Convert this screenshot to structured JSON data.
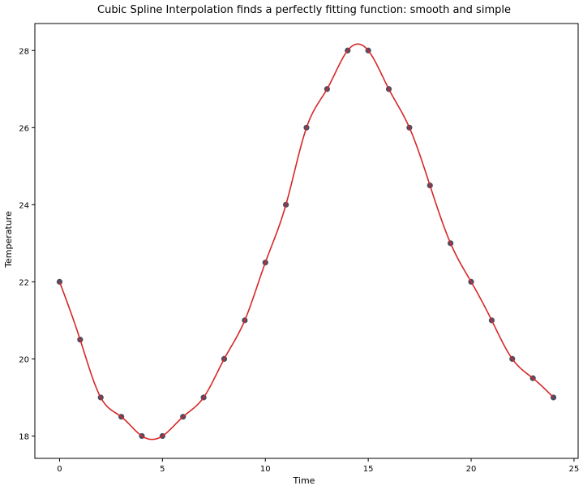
{
  "chart_data": {
    "type": "line",
    "title": "Cubic Spline Interpolation finds a perfectly fitting function: smooth and simple",
    "xlabel": "Time",
    "ylabel": "Temperature",
    "xlim": [
      -1.2,
      25.2
    ],
    "ylim": [
      17.42,
      28.7
    ],
    "xticks": [
      0,
      5,
      10,
      15,
      20,
      25
    ],
    "yticks": [
      18,
      20,
      22,
      24,
      26,
      28
    ],
    "grid": false,
    "x": [
      0,
      1,
      2,
      3,
      4,
      5,
      6,
      7,
      8,
      9,
      10,
      11,
      12,
      13,
      14,
      15,
      16,
      17,
      18,
      19,
      20,
      21,
      22,
      23,
      24
    ],
    "series": [
      {
        "kind": "points",
        "values": [
          22,
          20.5,
          19,
          18.5,
          18,
          18,
          18.5,
          19,
          20,
          21,
          22.5,
          24,
          26,
          27,
          28,
          28,
          27,
          26,
          24.5,
          23,
          22,
          21,
          20,
          19.5,
          19
        ],
        "color": "#4a4f66"
      },
      {
        "kind": "spline",
        "values": [
          22,
          20.5,
          19,
          18.5,
          18,
          18,
          18.5,
          19,
          20,
          21,
          22.5,
          24,
          26,
          27,
          28,
          28,
          27,
          26,
          24.5,
          23,
          22,
          21,
          20,
          19.5,
          19
        ],
        "color": "#d62728"
      }
    ]
  }
}
